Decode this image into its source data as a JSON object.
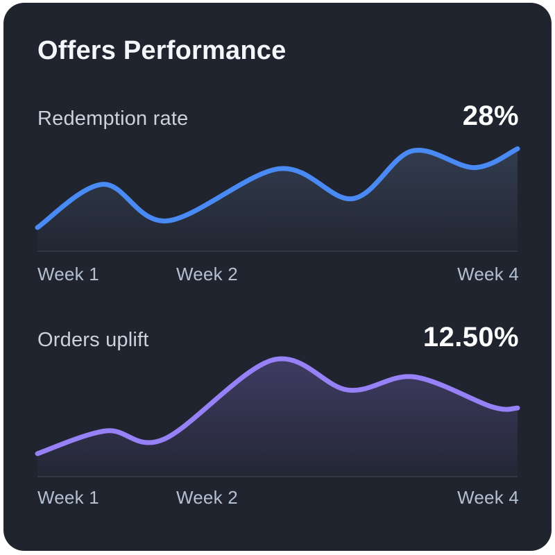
{
  "card": {
    "title": "Offers Performance"
  },
  "colors": {
    "page_bg": "#FFFFFF",
    "card_bg": "#20242F",
    "title_text": "#F4F6F9",
    "metric_label_text": "#CBD2DC",
    "metric_value_text": "#FFFFFF",
    "axis_label_text": "#B3C0D2",
    "axis_line": "#3A3F4E"
  },
  "chart_data": [
    {
      "type": "area",
      "title": "Redemption rate",
      "value_label": "28%",
      "line_color": "#4A8AF4",
      "fill_color_top": "rgba(124,158,208,0.20)",
      "fill_color_bottom": "rgba(124,158,208,0.02)",
      "x_tick_labels": [
        "Week 1",
        "Week 2",
        "Week 4"
      ],
      "x_range_weeks": [
        1,
        4
      ],
      "y_axis_note": "unlabeled relative scale 0-100, grid off",
      "points": [
        {
          "week": 1.0,
          "value": 20
        },
        {
          "week": 1.41,
          "value": 59
        },
        {
          "week": 1.81,
          "value": 26
        },
        {
          "week": 2.51,
          "value": 73
        },
        {
          "week": 2.97,
          "value": 46
        },
        {
          "week": 3.34,
          "value": 89
        },
        {
          "week": 3.73,
          "value": 74
        },
        {
          "week": 4.0,
          "value": 91
        }
      ]
    },
    {
      "type": "area",
      "title": "Orders uplift",
      "value_label": "12.50%",
      "line_color": "#9681F7",
      "fill_color_top": "rgba(150,129,247,0.26)",
      "fill_color_bottom": "rgba(150,129,247,0.03)",
      "x_tick_labels": [
        "Week 1",
        "Week 2",
        "Week 4"
      ],
      "x_range_weeks": [
        1,
        4
      ],
      "y_axis_note": "unlabeled relative scale 0-100, grid off",
      "points": [
        {
          "week": 1.0,
          "value": 18
        },
        {
          "week": 1.43,
          "value": 37
        },
        {
          "week": 1.79,
          "value": 30
        },
        {
          "week": 2.47,
          "value": 96
        },
        {
          "week": 2.94,
          "value": 71
        },
        {
          "week": 3.35,
          "value": 82
        },
        {
          "week": 3.84,
          "value": 57
        },
        {
          "week": 4.0,
          "value": 56
        }
      ]
    }
  ]
}
